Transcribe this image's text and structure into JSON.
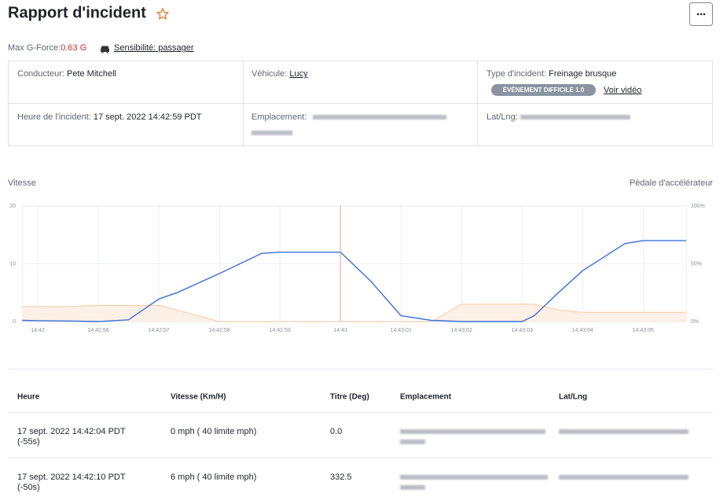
{
  "header": {
    "title": "Rapport d'incident"
  },
  "summary": {
    "gforce_label": "Max G-Force:",
    "gforce_value": "0.63 G",
    "sensitivity": "Sensibilité: passager"
  },
  "details": [
    {
      "label": "Conducteur:",
      "value": "Pete Mitchell"
    },
    {
      "label": "Véhicule:",
      "value": "Lucy"
    },
    {
      "label": "Type d'incident:",
      "value": "Freinage brusque",
      "badge": "ÉVÉNEMENT DIFFICILE 1.0",
      "link": "Voir vidéo"
    },
    {
      "label": "Heure de l'incident:",
      "value": "17 sept. 2022 14:42:59 PDT"
    },
    {
      "label": "Emplacement:"
    },
    {
      "label": "Lat/Lng:"
    }
  ],
  "chart_data": {
    "type": "line",
    "y_label": "Vitesse",
    "y2_label": "Pédale d'accélérateur",
    "x": [
      54.74,
      55,
      55.5,
      56,
      56.5,
      57,
      57.3,
      58,
      58.7,
      59,
      60,
      60.5,
      61,
      61.5,
      62,
      63,
      63.2,
      63.6,
      64,
      64.7,
      65,
      65.71
    ],
    "xlim": [
      54.74,
      65.71
    ],
    "xticks": [
      {
        "value": 55,
        "label": "14:42"
      },
      {
        "value": 56,
        "label": "14:42:56"
      },
      {
        "value": 57,
        "label": "14:42:57"
      },
      {
        "value": 58,
        "label": "14:42:58"
      },
      {
        "value": 59,
        "label": "14:42:59"
      },
      {
        "value": 60,
        "label": "14:43"
      },
      {
        "value": 61,
        "label": "14:43:01"
      },
      {
        "value": 62,
        "label": "14:43:02"
      },
      {
        "value": 63,
        "label": "14:43:03"
      },
      {
        "value": 64,
        "label": "14:43:04"
      },
      {
        "value": 65,
        "label": "14:43:05"
      }
    ],
    "ylim": [
      0,
      20
    ],
    "yticks": [
      0,
      10,
      20
    ],
    "y2lim": [
      0,
      100
    ],
    "y2ticks": [
      {
        "value": 0,
        "label": "0%"
      },
      {
        "value": 50,
        "label": "50%"
      },
      {
        "value": 100,
        "label": "100%"
      }
    ],
    "series": [
      {
        "color": "#f5c9a8",
        "axis": "y2",
        "fill": "#fdf0e6",
        "values": [
          13,
          13,
          13,
          14,
          14,
          14,
          10,
          0,
          0,
          0,
          0,
          0,
          0,
          0,
          15,
          15,
          15,
          10,
          8,
          8,
          8,
          8
        ]
      },
      {
        "color": "#3b6fd8",
        "values": [
          0.2,
          0.15,
          0.1,
          0,
          0.3,
          3.9,
          5,
          8.3,
          11.8,
          12,
          12,
          7,
          1,
          0.2,
          0,
          0,
          1,
          5,
          8.8,
          13.5,
          14,
          14
        ]
      }
    ],
    "marker_x": 60,
    "marker_color": "#e9a1ab",
    "grid": true
  },
  "table": {
    "columns": [
      "Heure",
      "Vitesse (Km/H)",
      "Titre (Deg)",
      "Emplacement",
      "Lat/Lng"
    ],
    "rows": [
      [
        [
          "17 sept. 2022 14:42:04 PDT",
          "(-55s)"
        ],
        "0 mph ( 40 limite mph)",
        "0.0"
      ],
      [
        [
          "17 sept. 2022 14:42:10 PDT",
          "(-50s)"
        ],
        "6 mph ( 40 limite mph)",
        "332.5"
      ]
    ]
  }
}
